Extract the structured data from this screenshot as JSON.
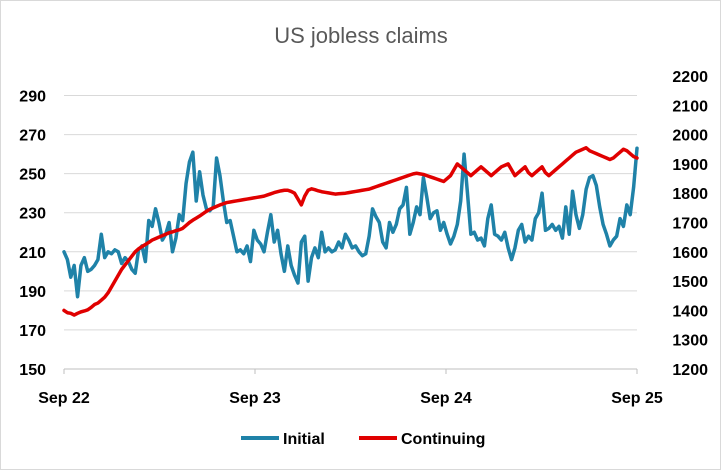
{
  "chart_data": {
    "type": "line",
    "title": "US jobless claims",
    "x_ticks": [
      "Sep 22",
      "Sep 23",
      "Sep 24",
      "Sep 25"
    ],
    "y_left": {
      "ticks": [
        150,
        170,
        190,
        210,
        230,
        250,
        270,
        290
      ],
      "range": [
        150,
        300
      ]
    },
    "y_right": {
      "ticks": [
        1200,
        1300,
        1400,
        1500,
        1600,
        1700,
        1800,
        1900,
        2000,
        2100,
        2200
      ],
      "range": [
        1200,
        2200
      ]
    },
    "legend_position": "bottom",
    "grid": "horizontal",
    "series": [
      {
        "name": "Initial",
        "axis": "left",
        "color": "#1f82a8",
        "values": [
          210,
          206,
          197,
          203,
          187,
          203,
          207,
          200,
          201,
          203,
          206,
          219,
          207,
          210,
          209,
          211,
          210,
          204,
          207,
          205,
          201,
          199,
          211,
          213,
          205,
          226,
          223,
          232,
          225,
          216,
          219,
          225,
          210,
          217,
          229,
          226,
          245,
          256,
          261,
          236,
          251,
          239,
          232,
          231,
          233,
          258,
          249,
          236,
          225,
          226,
          218,
          210,
          211,
          209,
          213,
          205,
          221,
          216,
          214,
          210,
          220,
          229,
          215,
          221,
          209,
          200,
          213,
          203,
          198,
          194,
          215,
          218,
          195,
          207,
          212,
          207,
          220,
          210,
          212,
          210,
          211,
          215,
          212,
          219,
          216,
          212,
          213,
          210,
          208,
          209,
          218,
          232,
          228,
          225,
          215,
          212,
          225,
          220,
          224,
          232,
          234,
          243,
          219,
          225,
          233,
          229,
          248,
          238,
          227,
          230,
          231,
          221,
          225,
          219,
          214,
          218,
          224,
          236,
          260,
          240,
          219,
          220,
          216,
          217,
          213,
          227,
          234,
          219,
          218,
          216,
          220,
          212,
          206,
          212,
          221,
          224,
          215,
          218,
          216,
          227,
          230,
          240,
          221,
          222,
          224,
          221,
          223,
          217,
          233,
          219,
          241,
          229,
          222,
          229,
          242,
          248,
          249,
          244,
          233,
          224,
          219,
          213,
          216,
          218,
          227,
          223,
          234,
          229,
          243,
          263
        ]
      },
      {
        "name": "Continuing",
        "axis": "right",
        "color": "#e00000",
        "values": [
          1400,
          1392,
          1390,
          1384,
          1390,
          1395,
          1398,
          1402,
          1410,
          1420,
          1425,
          1435,
          1445,
          1460,
          1480,
          1500,
          1520,
          1540,
          1555,
          1570,
          1585,
          1600,
          1610,
          1618,
          1625,
          1632,
          1640,
          1645,
          1650,
          1655,
          1660,
          1665,
          1668,
          1672,
          1675,
          1680,
          1690,
          1700,
          1708,
          1715,
          1722,
          1730,
          1738,
          1745,
          1750,
          1755,
          1760,
          1764,
          1768,
          1770,
          1772,
          1774,
          1776,
          1778,
          1780,
          1782,
          1784,
          1786,
          1788,
          1790,
          1794,
          1798,
          1802,
          1805,
          1808,
          1810,
          1810,
          1806,
          1800,
          1780,
          1760,
          1790,
          1810,
          1815,
          1812,
          1808,
          1805,
          1803,
          1801,
          1799,
          1797,
          1798,
          1799,
          1800,
          1802,
          1804,
          1806,
          1808,
          1810,
          1812,
          1814,
          1818,
          1822,
          1826,
          1830,
          1834,
          1838,
          1842,
          1846,
          1850,
          1854,
          1858,
          1862,
          1866,
          1868,
          1866,
          1864,
          1860,
          1856,
          1852,
          1848,
          1844,
          1840,
          1850,
          1860,
          1880,
          1900,
          1890,
          1880,
          1870,
          1860,
          1870,
          1880,
          1890,
          1880,
          1870,
          1860,
          1870,
          1880,
          1890,
          1895,
          1900,
          1880,
          1860,
          1870,
          1880,
          1890,
          1870,
          1860,
          1870,
          1880,
          1890,
          1870,
          1860,
          1870,
          1880,
          1890,
          1900,
          1910,
          1920,
          1930,
          1940,
          1945,
          1950,
          1955,
          1945,
          1940,
          1935,
          1930,
          1925,
          1920,
          1915,
          1920,
          1930,
          1940,
          1950,
          1945,
          1935,
          1925,
          1920
        ]
      }
    ]
  }
}
